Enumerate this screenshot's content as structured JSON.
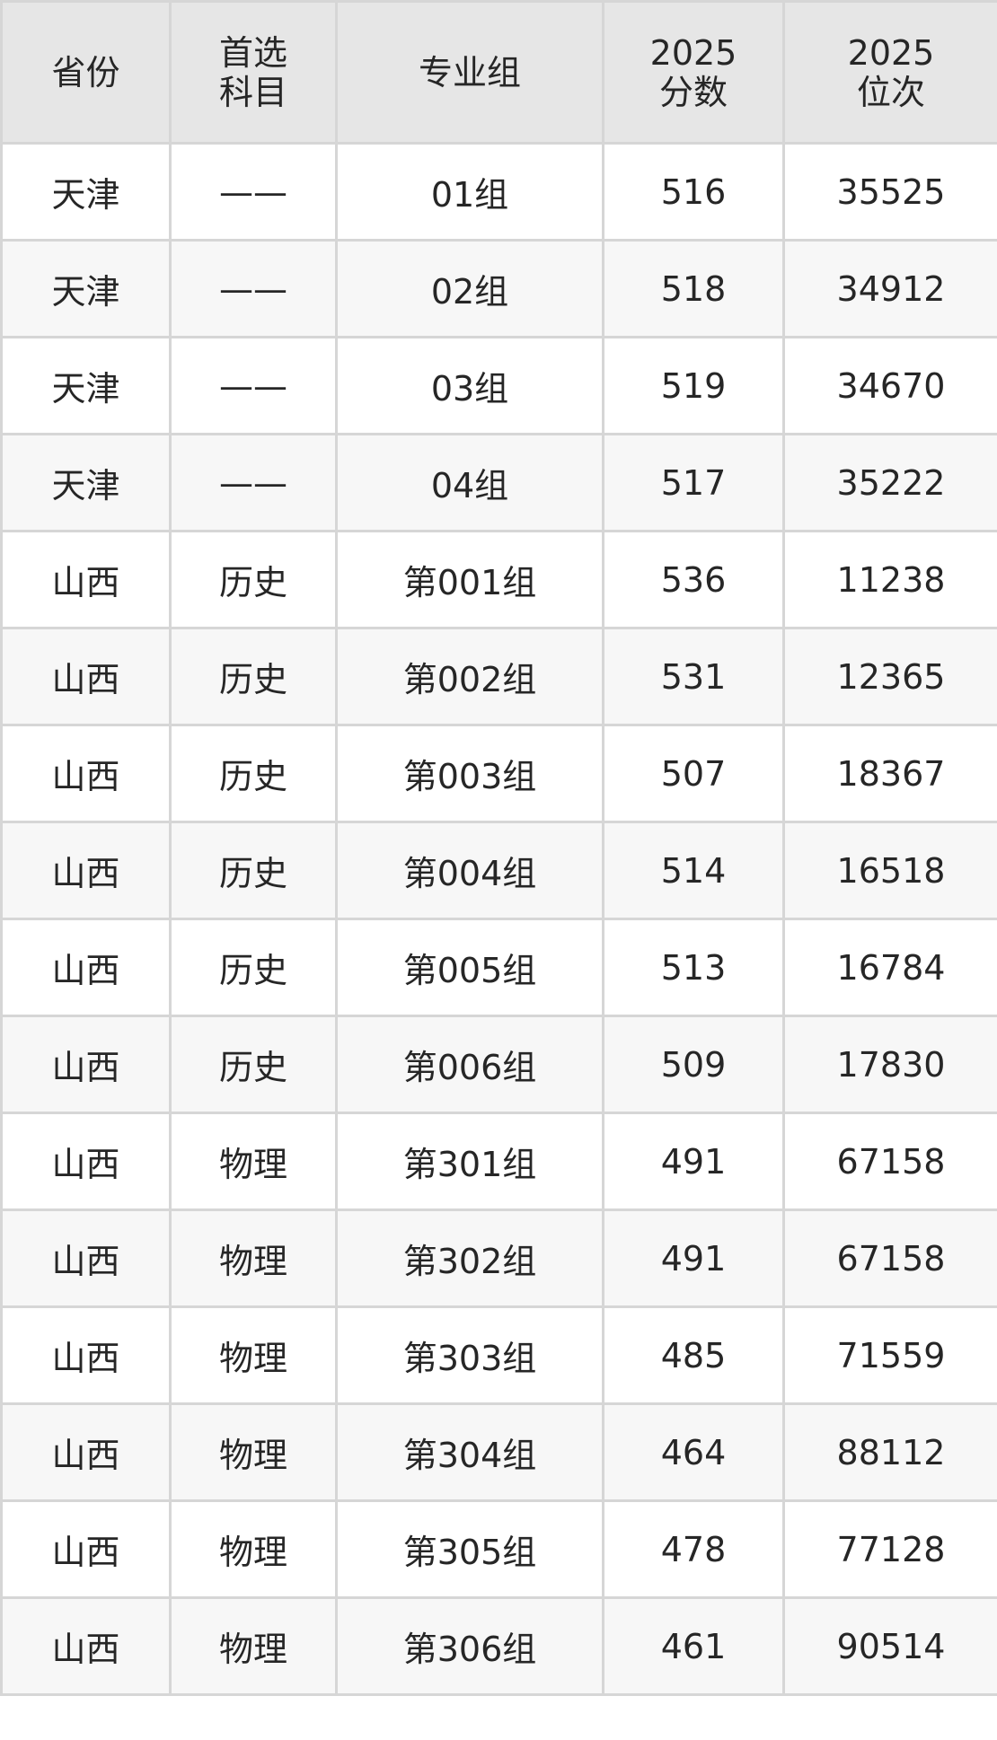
{
  "headers": [
    {
      "line1": "省份",
      "line2": ""
    },
    {
      "line1": "首选",
      "line2": "科目"
    },
    {
      "line1": "专业组",
      "line2": ""
    },
    {
      "line1": "2025",
      "line2": "分数"
    },
    {
      "line1": "2025",
      "line2": "位次"
    }
  ],
  "rows": [
    [
      "天津",
      "——",
      "01组",
      "516",
      "35525"
    ],
    [
      "天津",
      "——",
      "02组",
      "518",
      "34912"
    ],
    [
      "天津",
      "——",
      "03组",
      "519",
      "34670"
    ],
    [
      "天津",
      "——",
      "04组",
      "517",
      "35222"
    ],
    [
      "山西",
      "历史",
      "第001组",
      "536",
      "11238"
    ],
    [
      "山西",
      "历史",
      "第002组",
      "531",
      "12365"
    ],
    [
      "山西",
      "历史",
      "第003组",
      "507",
      "18367"
    ],
    [
      "山西",
      "历史",
      "第004组",
      "514",
      "16518"
    ],
    [
      "山西",
      "历史",
      "第005组",
      "513",
      "16784"
    ],
    [
      "山西",
      "历史",
      "第006组",
      "509",
      "17830"
    ],
    [
      "山西",
      "物理",
      "第301组",
      "491",
      "67158"
    ],
    [
      "山西",
      "物理",
      "第302组",
      "491",
      "67158"
    ],
    [
      "山西",
      "物理",
      "第303组",
      "485",
      "71559"
    ],
    [
      "山西",
      "物理",
      "第304组",
      "464",
      "88112"
    ],
    [
      "山西",
      "物理",
      "第305组",
      "478",
      "77128"
    ],
    [
      "山西",
      "物理",
      "第306组",
      "461",
      "90514"
    ]
  ]
}
